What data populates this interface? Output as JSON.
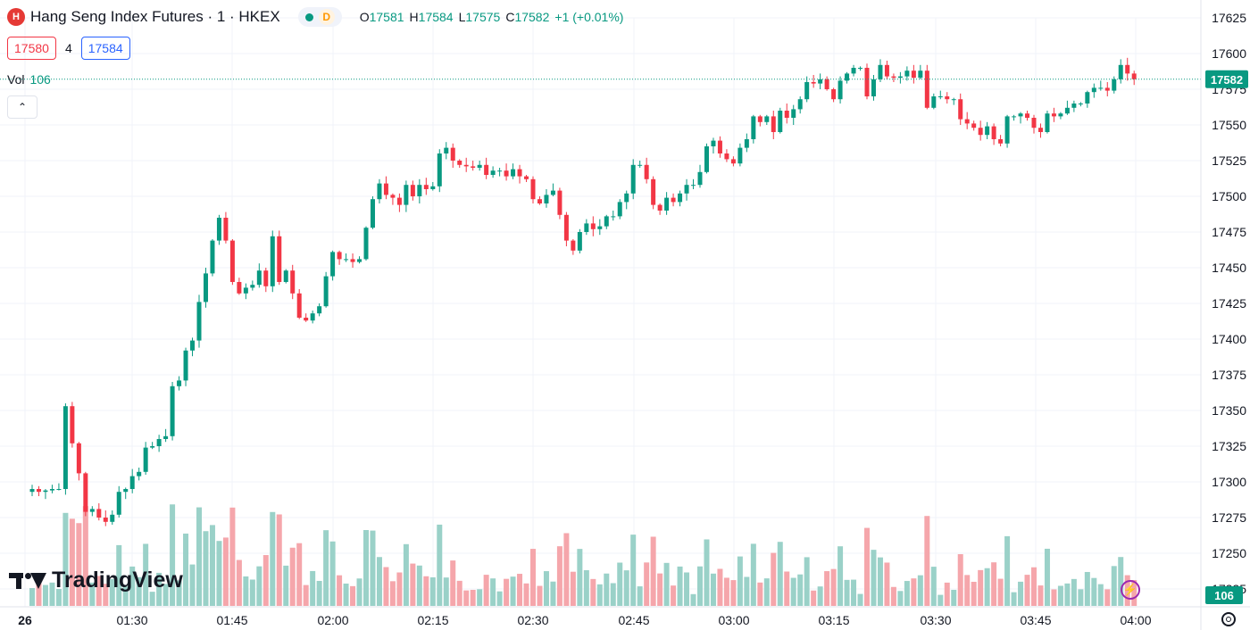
{
  "header": {
    "symbol_title": "Hang Seng Index Futures · 1 · HKEX",
    "logo_glyph": "H",
    "status_badge": "D",
    "ohlc": {
      "o_label": "O",
      "o": "17581",
      "h_label": "H",
      "h": "17584",
      "l_label": "L",
      "l": "17575",
      "c_label": "C",
      "c": "17582",
      "change": "+1 (+0.01%)"
    }
  },
  "quote": {
    "bid": "17580",
    "spread": "4",
    "ask": "17584"
  },
  "volume_legend": {
    "label": "Vol",
    "value": "106"
  },
  "branding": {
    "name": "TradingView"
  },
  "colors": {
    "up": "#089981",
    "down": "#f23645",
    "up_volume": "#9ad1c8",
    "down_volume": "#f5a6ab",
    "last_price": "#089981",
    "grid": "#f0f3fa"
  },
  "icons": [
    "collapse-chevron-up-icon",
    "flash-icon",
    "settings-icon",
    "tradingview-logo-icon"
  ],
  "chart_data": {
    "type": "candlestick",
    "interval": "1 minute",
    "y_axis_ticks": [
      17625,
      17600,
      17575,
      17550,
      17525,
      17500,
      17475,
      17450,
      17425,
      17400,
      17375,
      17350,
      17325,
      17300,
      17275,
      17250,
      17225
    ],
    "y_axis_tick_labels": [
      "17625",
      "17600",
      "17575",
      "17550",
      "17525",
      "17500",
      "17475",
      "17450",
      "17425",
      "17400",
      "17375",
      "17350",
      "17325",
      "17300",
      "17275",
      "17250",
      "17225"
    ],
    "ylim": [
      17215,
      17630
    ],
    "x_axis_labels": [
      "26",
      "01:30",
      "01:45",
      "02:00",
      "02:15",
      "02:30",
      "02:45",
      "03:00",
      "03:15",
      "03:30",
      "03:45",
      "04:00"
    ],
    "last_price": 17582,
    "last_price_label": "17582",
    "last_volume_label": "106",
    "closes": [
      17295,
      17293,
      17294,
      17295,
      17295,
      17353,
      17327,
      17306,
      17279,
      17281,
      17275,
      17272,
      17277,
      17293,
      17295,
      17304,
      17307,
      17324,
      17325,
      17330,
      17332,
      17367,
      17371,
      17392,
      17399,
      17426,
      17446,
      17469,
      17485,
      17469,
      17440,
      17432,
      17436,
      17438,
      17448,
      17437,
      17472,
      17440,
      17448,
      17432,
      17415,
      17413,
      17418,
      17423,
      17444,
      17461,
      17456,
      17456,
      17454,
      17456,
      17478,
      17498,
      17509,
      17501,
      17499,
      17494,
      17508,
      17500,
      17508,
      17505,
      17507,
      17530,
      17534,
      17525,
      17522,
      17521,
      17520,
      17522,
      17515,
      17518,
      17518,
      17514,
      17519,
      17514,
      17512,
      17498,
      17495,
      17501,
      17504,
      17487,
      17469,
      17462,
      17475,
      17481,
      17477,
      17479,
      17486,
      17486,
      17496,
      17502,
      17522,
      17522,
      17512,
      17494,
      17490,
      17499,
      17496,
      17502,
      17508,
      17508,
      17517,
      17535,
      17539,
      17530,
      17526,
      17523,
      17534,
      17540,
      17556,
      17552,
      17556,
      17545,
      17560,
      17555,
      17561,
      17568,
      17580,
      17579,
      17582,
      17575,
      17568,
      17581,
      17586,
      17590,
      17590,
      17570,
      17582,
      17592,
      17584,
      17583,
      17584,
      17588,
      17583,
      17588,
      17562,
      17570,
      17570,
      17568,
      17568,
      17554,
      17551,
      17548,
      17543,
      17549,
      17540,
      17537,
      17556,
      17556,
      17558,
      17555,
      17548,
      17545,
      17558,
      17556,
      17558,
      17562,
      17565,
      17565,
      17573,
      17576,
      17576,
      17574,
      17582,
      17592,
      17586,
      17582
    ]
  }
}
